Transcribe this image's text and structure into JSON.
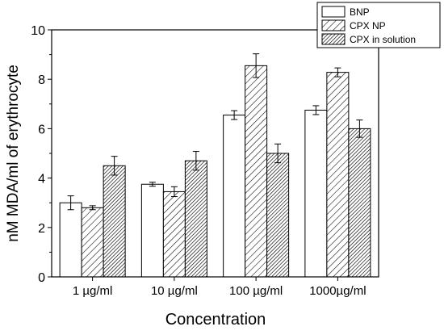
{
  "chart_data": {
    "type": "bar",
    "title": "",
    "xlabel": "Concentration",
    "ylabel": "nM MDA/ml of erythrocyte",
    "ylim": [
      0,
      10
    ],
    "yticks": [
      0,
      2,
      4,
      6,
      8,
      10
    ],
    "grid": false,
    "legend_position": "top-right",
    "categories": [
      "1 µg/ml",
      "10 µg/ml",
      "100 µg/ml",
      "1000µg/ml"
    ],
    "series": [
      {
        "name": "BNP",
        "fill": "none",
        "values": [
          3.0,
          3.75,
          6.55,
          6.75
        ],
        "errors": [
          0.28,
          0.08,
          0.18,
          0.18
        ]
      },
      {
        "name": "CPX NP",
        "fill": "light-hatch",
        "values": [
          2.8,
          3.45,
          8.55,
          8.28
        ],
        "errors": [
          0.08,
          0.2,
          0.48,
          0.18
        ]
      },
      {
        "name": "CPX in solution",
        "fill": "dense-hatch",
        "values": [
          4.5,
          4.7,
          5.0,
          6.0
        ],
        "errors": [
          0.38,
          0.38,
          0.38,
          0.35
        ]
      }
    ],
    "colors": {
      "bar_stroke": "#000000",
      "bar_fill": "#ffffff",
      "hatch": "#000000"
    }
  }
}
